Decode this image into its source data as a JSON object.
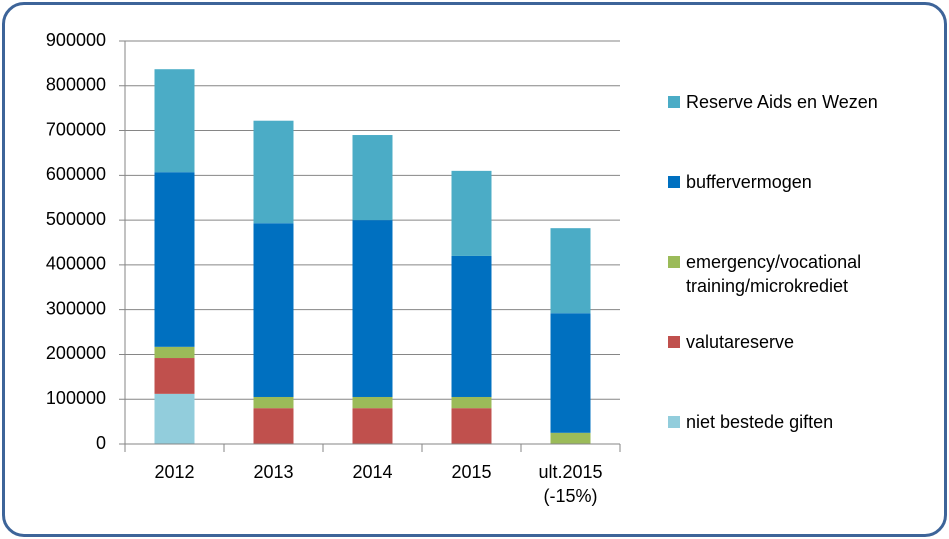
{
  "chart_data": {
    "type": "stacked_bar",
    "categories": [
      "2012",
      "2013",
      "2014",
      "2015",
      "ult.2015 (-15%)"
    ],
    "series": [
      {
        "name": "niet bestede giften",
        "color": "#92cddc",
        "values": [
          112000,
          0,
          0,
          0,
          0
        ]
      },
      {
        "name": "valutareserve",
        "color": "#c0504d",
        "values": [
          80000,
          80000,
          80000,
          80000,
          0
        ]
      },
      {
        "name": "emergency/vocational training/microkrediet",
        "color": "#9bbb59",
        "values": [
          25000,
          25000,
          25000,
          25000,
          25000
        ]
      },
      {
        "name": "buffervermogen",
        "color": "#0070c0",
        "values": [
          390000,
          388000,
          395000,
          315000,
          267000
        ]
      },
      {
        "name": "Reserve Aids en Wezen",
        "color": "#4bacc6",
        "values": [
          230000,
          229000,
          190000,
          190000,
          190000
        ]
      }
    ],
    "ylim": [
      0,
      900000
    ],
    "yticks": [
      0,
      100000,
      200000,
      300000,
      400000,
      500000,
      600000,
      700000,
      800000,
      900000
    ],
    "grid": true,
    "legend": "right"
  }
}
